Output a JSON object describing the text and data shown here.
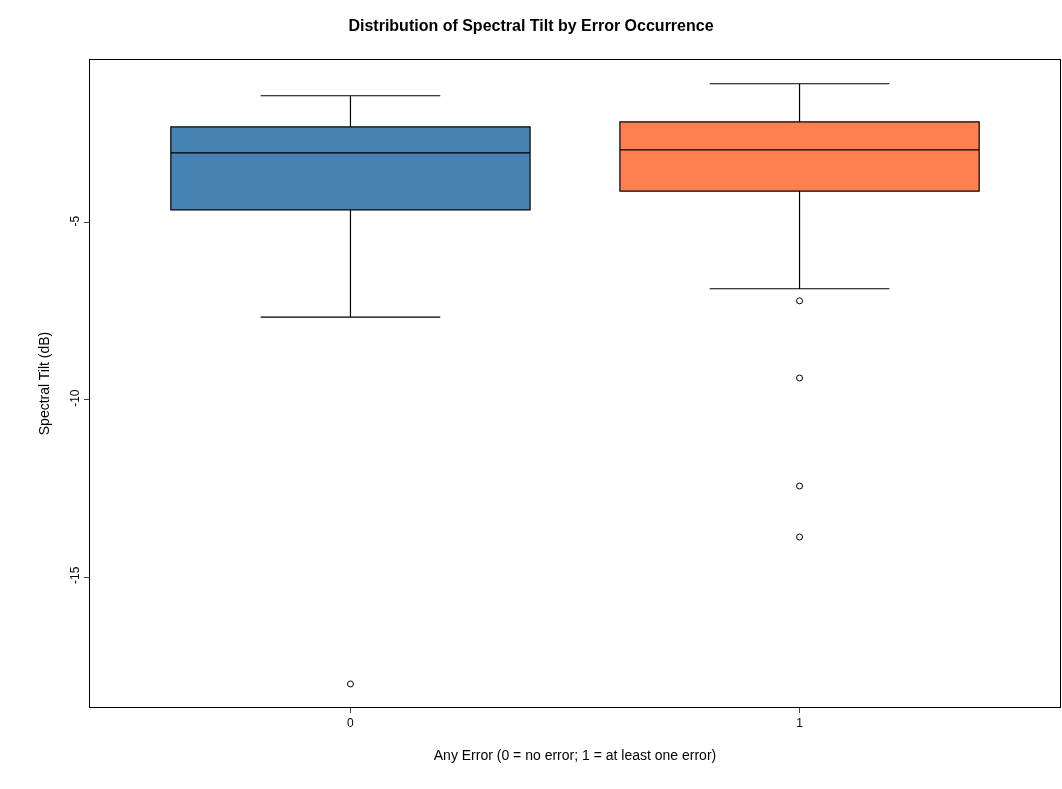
{
  "chart_data": {
    "type": "box",
    "title": "Distribution of Spectral Tilt by Error Occurrence",
    "xlabel": "Any Error (0 = no error; 1 = at least one error)",
    "ylabel": "Spectral Tilt (dB)",
    "categories": [
      "0",
      "1"
    ],
    "colors": [
      "#4682b4",
      "#ff7f50"
    ],
    "boxes": [
      {
        "low": -7.66,
        "q1": -4.63,
        "median": -3.02,
        "q3": -2.29,
        "high": -1.41,
        "outliers": [
          -18.02
        ]
      },
      {
        "low": -6.86,
        "q1": -4.1,
        "median": -2.94,
        "q3": -2.15,
        "high": -1.07,
        "outliers": [
          -7.2,
          -9.38,
          -12.43,
          -13.87
        ]
      }
    ],
    "ylim": [
      -18.67,
      -0.4
    ],
    "yticks": [
      -5,
      -10,
      -15
    ],
    "marker": "circle"
  }
}
